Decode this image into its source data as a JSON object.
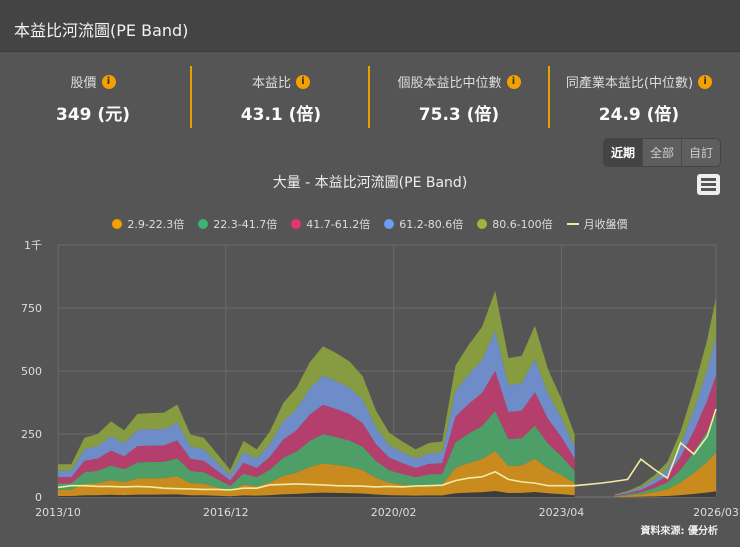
{
  "header": {
    "title": "本益比河流圖(PE Band)"
  },
  "stats": [
    {
      "label": "股價",
      "value": "349 (元)"
    },
    {
      "label": "本益比",
      "value": "43.1 (倍)"
    },
    {
      "label": "個股本益比中位數",
      "value": "75.3 (倍)"
    },
    {
      "label": "同產業本益比(中位數)",
      "value": "24.9 (倍)"
    }
  ],
  "info_icon": "i",
  "range_buttons": [
    {
      "label": "近期",
      "active": true
    },
    {
      "label": "全部",
      "active": false
    },
    {
      "label": "自訂",
      "active": false
    }
  ],
  "source": "資料來源: 優分析",
  "chart_data": {
    "type": "area",
    "stacked": true,
    "title": "大量 - 本益比河流圖(PE Band)",
    "ylim": [
      0,
      1000
    ],
    "y_ticks": [
      "0",
      "250",
      "500",
      "750",
      "1千"
    ],
    "y_tick_values": [
      0,
      250,
      500,
      750,
      1000
    ],
    "x_ticks": [
      "2013/10",
      "2016/12",
      "2020/02",
      "2023/04",
      "2026/03"
    ],
    "grid": true,
    "legend_position": "top",
    "pe_multiples": [
      2.9,
      22.3,
      41.7,
      61.2,
      80.6,
      100
    ],
    "dates": [
      "2013/10",
      "2014/01",
      "2014/04",
      "2014/07",
      "2014/10",
      "2015/01",
      "2015/04",
      "2015/07",
      "2015/10",
      "2016/01",
      "2016/04",
      "2016/07",
      "2016/10",
      "2017/01",
      "2017/04",
      "2017/07",
      "2017/10",
      "2018/01",
      "2018/04",
      "2018/07",
      "2018/10",
      "2019/01",
      "2019/04",
      "2019/07",
      "2019/10",
      "2020/01",
      "2020/04",
      "2020/07",
      "2020/10",
      "2021/01",
      "2021/04",
      "2021/07",
      "2021/10",
      "2022/01",
      "2022/04",
      "2022/07",
      "2022/10",
      "2023/01",
      "2023/04",
      "2023/07",
      "2023/10",
      "2024/01",
      "2024/04",
      "2024/07",
      "2024/10",
      "2025/01",
      "2025/04",
      "2025/07",
      "2025/10",
      "2026/01",
      "2026/03"
    ],
    "band_top_100x": [
      130,
      130,
      235,
      250,
      300,
      265,
      330,
      333,
      335,
      367,
      248,
      235,
      172,
      107,
      222,
      189,
      261,
      373,
      433,
      534,
      598,
      571,
      538,
      479,
      343,
      255,
      220,
      189,
      215,
      220,
      521,
      604,
      674,
      818,
      551,
      560,
      680,
      505,
      389,
      248,
      null,
      null,
      10,
      24,
      46,
      86,
      139,
      261,
      429,
      624,
      790
    ],
    "series": [
      {
        "name": "2.9-22.3倍",
        "color": "#c98a1e",
        "legend_color": "#f5a000"
      },
      {
        "name": "22.3-41.7倍",
        "color": "#4e9e68",
        "legend_color": "#3cb371"
      },
      {
        "name": "41.7-61.2倍",
        "color": "#b53f6c",
        "legend_color": "#e8336d"
      },
      {
        "name": "61.2-80.6倍",
        "color": "#6d8cc8",
        "legend_color": "#6c9df0"
      },
      {
        "name": "80.6-100倍",
        "color": "#879b40",
        "legend_color": "#9ab83a"
      }
    ],
    "price_series": {
      "name": "月收盤價",
      "color": "#f0eca0",
      "values": [
        38,
        45,
        45,
        42,
        42,
        40,
        42,
        40,
        35,
        33,
        32,
        30,
        30,
        28,
        35,
        35,
        48,
        50,
        52,
        50,
        48,
        45,
        44,
        43,
        40,
        42,
        40,
        44,
        45,
        47,
        65,
        75,
        80,
        100,
        70,
        60,
        55,
        45,
        45,
        45,
        50,
        55,
        62,
        70,
        150,
        110,
        75,
        215,
        170,
        240,
        349
      ]
    }
  }
}
